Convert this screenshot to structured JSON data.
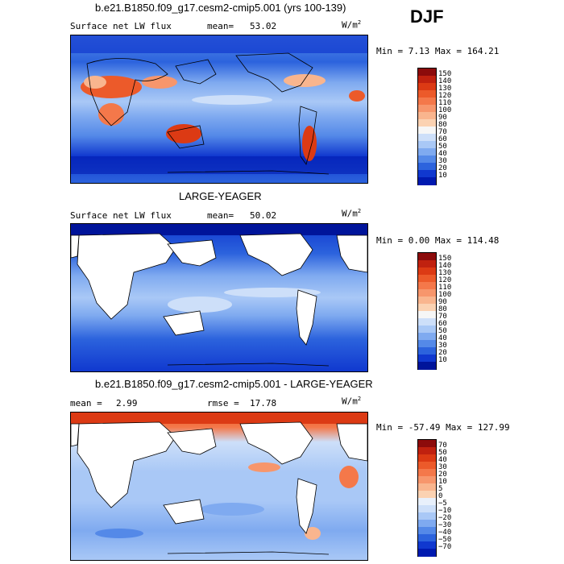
{
  "season": "DJF",
  "panels": [
    {
      "title": "b.e21.B1850.f09_g17.cesm2-cmip5.001 (yrs 100-139)",
      "left_label": "Surface net LW flux",
      "mean_label": "mean=",
      "mean_value": "53.02",
      "units": "W/m",
      "units_sup": "2",
      "minmax": "Min =   7.13 Max = 164.21",
      "colorbar_labels": [
        "150",
        "140",
        "130",
        "120",
        "110",
        "100",
        "90",
        "80",
        "70",
        "60",
        "50",
        "40",
        "30",
        "20",
        "10"
      ],
      "colorbar_colors": [
        "#8c0b0b",
        "#c0210f",
        "#dc3a14",
        "#ec5a2a",
        "#f4784a",
        "#f7966c",
        "#f9b58e",
        "#fbd2b2",
        "#f6f6f6",
        "#cddff9",
        "#a9c8f6",
        "#7faaf0",
        "#5489e8",
        "#2c63dd",
        "#1038cf",
        "#001ab0"
      ]
    },
    {
      "title": "LARGE-YEAGER",
      "left_label": "Surface net LW flux",
      "mean_label": "mean=",
      "mean_value": "50.02",
      "units": "W/m",
      "units_sup": "2",
      "minmax": "Min =   0.00 Max = 114.48",
      "colorbar_labels": [
        "150",
        "140",
        "130",
        "120",
        "110",
        "100",
        "90",
        "80",
        "70",
        "60",
        "50",
        "40",
        "30",
        "20",
        "10"
      ],
      "colorbar_colors": [
        "#8c0b0b",
        "#c0210f",
        "#dc3a14",
        "#ec5a2a",
        "#f4784a",
        "#f7966c",
        "#f9b58e",
        "#fbd2b2",
        "#f6f6f6",
        "#cddff9",
        "#a9c8f6",
        "#7faaf0",
        "#5489e8",
        "#2c63dd",
        "#1038cf",
        "#00149a"
      ]
    },
    {
      "title": "b.e21.B1850.f09_g17.cesm2-cmip5.001 - LARGE-YEAGER",
      "left_label": "mean =",
      "mean_label": "",
      "mean_value": "2.99",
      "rmse_label": "rmse =",
      "rmse_value": "17.78",
      "units": "W/m",
      "units_sup": "2",
      "minmax": "Min = -57.49 Max = 127.99",
      "colorbar_labels": [
        "70",
        "50",
        "40",
        "30",
        "20",
        "10",
        "5",
        "0",
        "−5",
        "−10",
        "−20",
        "−30",
        "−40",
        "−50",
        "−70"
      ],
      "colorbar_colors": [
        "#8c0b0b",
        "#c0210f",
        "#dc3a14",
        "#ec5a2a",
        "#f4784a",
        "#f7966c",
        "#f9b58e",
        "#fbd2b2",
        "#e8f0fb",
        "#cddff9",
        "#a9c8f6",
        "#7faaf0",
        "#5489e8",
        "#2c63dd",
        "#1038cf",
        "#001ab0"
      ]
    }
  ]
}
